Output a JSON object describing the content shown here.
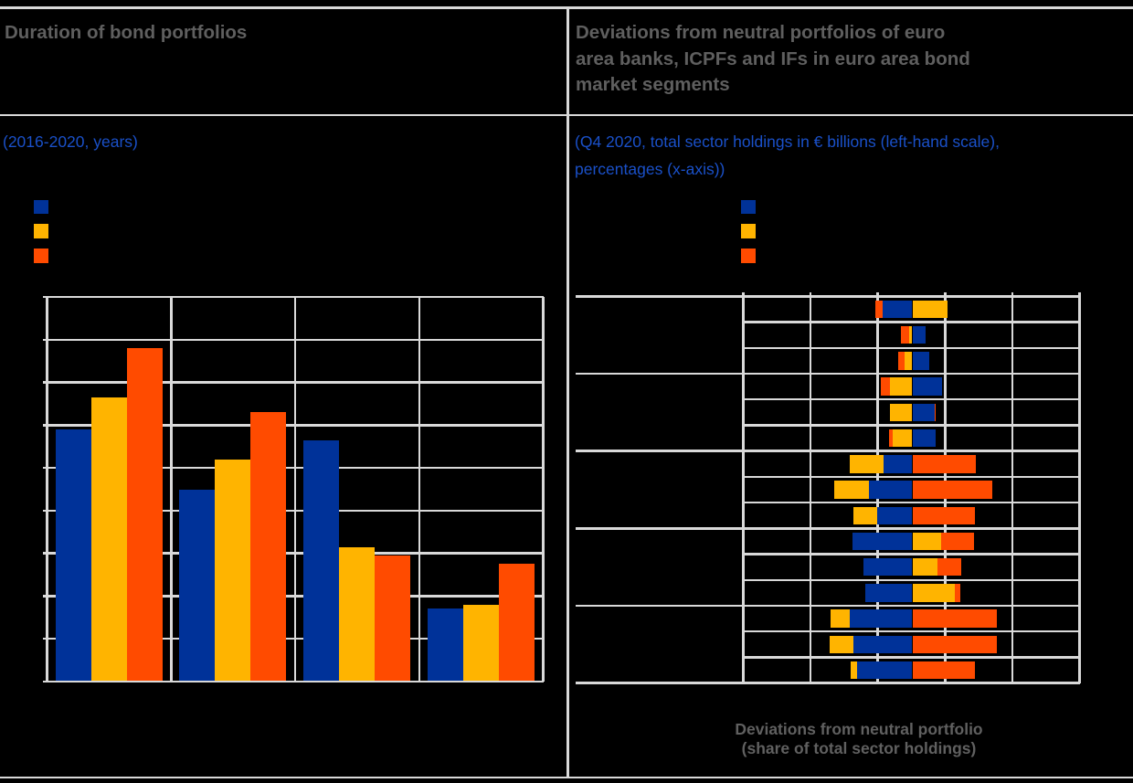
{
  "figure": {
    "palette": {
      "background": "#000000",
      "series_blue": "#003299",
      "series_yellow": "#FFB400",
      "series_orange": "#FF4B00",
      "gridline_gray": "#D9D9D9",
      "title_gray": "#5F5F5F",
      "subtitle_blue": "#1A50C8"
    }
  },
  "left_panel": {
    "title": "Duration of bond portfolios",
    "subtitle": "(2016-2020, years)",
    "legend": [
      {
        "swatch_color": "#003299"
      },
      {
        "swatch_color": "#FFB400"
      },
      {
        "swatch_color": "#FF4B00"
      }
    ]
  },
  "right_panel": {
    "title_lines": [
      "Deviations from neutral portfolios of euro",
      "area banks, ICPFs and IFs in euro area bond",
      "market segments"
    ],
    "subtitle_line1": "(Q4 2020, total sector holdings in € billions (left-hand scale),",
    "subtitle_line2": "percentages (x-axis))",
    "legend": [
      {
        "swatch_color": "#003299"
      },
      {
        "swatch_color": "#FFB400"
      },
      {
        "swatch_color": "#FF4B00"
      }
    ],
    "xaxis_label_line1": "Deviations from neutral portfolio",
    "xaxis_label_line2": "(share of total sector holdings)"
  },
  "chart_data": [
    {
      "id": "duration-of-bond-portfolios",
      "type": "bar",
      "orientation": "vertical-grouped",
      "title": "Duration of bond portfolios",
      "subtitle": "(2016-2020, years)",
      "xlabel": "",
      "ylabel": "years",
      "ylim": [
        0,
        9
      ],
      "gridline_step": 1,
      "grid": "on",
      "legend_position": "top-left",
      "categories": [
        "",
        "",
        "",
        ""
      ],
      "series": [
        {
          "name": "series-blue",
          "color": "#003299",
          "values": [
            5.9,
            4.5,
            5.65,
            1.7
          ]
        },
        {
          "name": "series-yellow",
          "color": "#FFB400",
          "values": [
            6.65,
            5.2,
            3.15,
            1.8
          ]
        },
        {
          "name": "series-orange",
          "color": "#FF4B00",
          "values": [
            7.8,
            6.3,
            2.95,
            2.75
          ]
        }
      ],
      "note": "category, legend and tick labels are not legible in the source image (dark text on dark background)"
    },
    {
      "id": "deviations-from-neutral-portfolios",
      "type": "bar",
      "orientation": "horizontal-diverging-stacked",
      "title": "Deviations from neutral portfolios of euro area banks, ICPFs and IFs in euro area bond market segments",
      "subtitle": "(Q4 2020, total sector holdings in € billions (left-hand scale), percentages (x-axis))",
      "xlabel": "Deviations from neutral portfolio (share of total sector holdings)",
      "xlim": [
        -12.5,
        12.5
      ],
      "gridline_step": 5,
      "grid": "on",
      "rows": 15,
      "row_groups": 5,
      "rows_per_group": 3,
      "units": "percent",
      "series": [
        {
          "name": "series-blue",
          "color": "#003299",
          "values": [
            -2.2,
            0.95,
            1.2,
            2.15,
            1.6,
            1.7,
            -2.1,
            -3.25,
            -2.6,
            -4.45,
            -3.65,
            -3.5,
            -4.65,
            -4.4,
            -4.1
          ]
        },
        {
          "name": "series-yellow",
          "color": "#FFB400",
          "values": [
            2.55,
            -0.25,
            -0.55,
            -1.65,
            -1.65,
            -1.45,
            -2.55,
            -2.55,
            -1.8,
            2.1,
            1.8,
            3.1,
            -1.4,
            -1.75,
            -0.5
          ]
        },
        {
          "name": "series-orange",
          "color": "#FF4B00",
          "values": [
            -0.55,
            -0.6,
            -0.5,
            -0.7,
            0.1,
            -0.25,
            4.65,
            5.9,
            4.6,
            2.45,
            1.75,
            0.4,
            6.2,
            6.2,
            4.6
          ]
        }
      ],
      "note": "row/group labels, left-hand-scale values and x-axis tick labels are not legible in the source image (dark text on dark background); values estimated from gridlines assuming 5-percentage-point spacing"
    }
  ]
}
